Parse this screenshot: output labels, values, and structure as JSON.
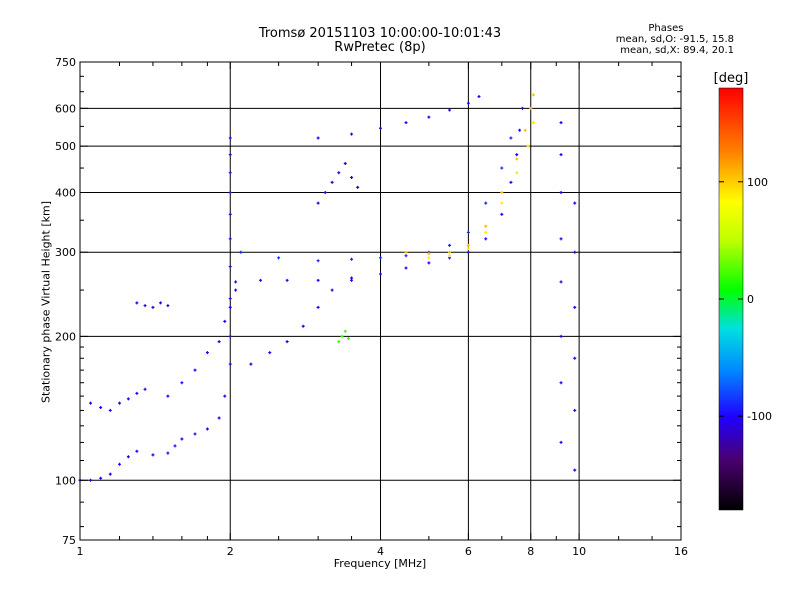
{
  "header": {
    "title_line1": "Tromsø 20151103 10:00:00-10:01:43",
    "title_line2": "RwPretec (8p)"
  },
  "phases": {
    "title": "Phases",
    "line_o": "mean, sd,O: -91.5, 15.8",
    "line_x": "mean, sd,X: 89.4, 20.1"
  },
  "chart_data": {
    "type": "scatter",
    "title": "Tromsø 20151103 10:00:00-10:01:43",
    "subtitle": "RwPretec (8p)",
    "xlabel": "Frequency [MHz]",
    "ylabel": "Stationary phase Virtual Height [km]",
    "x_scale": "log",
    "y_scale": "log",
    "xlim": [
      1,
      16
    ],
    "ylim": [
      75,
      750
    ],
    "x_ticks": [
      1,
      2,
      4,
      6,
      8,
      10,
      16
    ],
    "x_tick_labels": [
      "1",
      "2",
      "4",
      "6",
      "8",
      "10",
      "16"
    ],
    "x_minor_ticks": [
      1.2,
      1.4,
      1.6,
      1.8,
      2.5,
      3,
      3.5,
      5,
      7,
      9,
      12,
      14
    ],
    "y_ticks": [
      75,
      100,
      200,
      300,
      400,
      500,
      600,
      750
    ],
    "y_tick_labels": [
      "75",
      "100",
      "200",
      "300",
      "400",
      "500",
      "600",
      "750"
    ],
    "y_minor_ticks": [
      80,
      90,
      110,
      120,
      130,
      140,
      150,
      160,
      170,
      180,
      190,
      250,
      350,
      450,
      550,
      650,
      700
    ],
    "grid": true,
    "colorbar": {
      "label": "[deg]",
      "range": [
        -180,
        180
      ],
      "ticks": [
        100,
        0,
        -100
      ],
      "tick_labels": [
        "100",
        "0",
        "-100"
      ]
    },
    "traces": [
      {
        "name": "",
        "phase": -100,
        "points": [
          [
            1.0,
            100
          ],
          [
            1.05,
            100
          ],
          [
            1.1,
            101
          ],
          [
            1.15,
            103
          ],
          [
            1.2,
            108
          ],
          [
            1.25,
            112
          ],
          [
            1.3,
            115
          ],
          [
            1.4,
            113
          ],
          [
            1.5,
            114
          ],
          [
            1.55,
            118
          ],
          [
            1.6,
            122
          ],
          [
            1.7,
            125
          ],
          [
            1.8,
            128
          ],
          [
            1.9,
            135
          ],
          [
            1.95,
            150
          ]
        ]
      },
      {
        "name": "",
        "phase": -100,
        "points": [
          [
            1.05,
            145
          ],
          [
            1.1,
            142
          ],
          [
            1.15,
            140
          ],
          [
            1.2,
            145
          ],
          [
            1.25,
            148
          ],
          [
            1.3,
            152
          ],
          [
            1.35,
            155
          ]
        ]
      },
      {
        "name": "",
        "phase": -100,
        "points": [
          [
            1.3,
            235
          ],
          [
            1.35,
            232
          ],
          [
            1.4,
            230
          ],
          [
            1.45,
            235
          ],
          [
            1.5,
            232
          ]
        ]
      },
      {
        "name": "",
        "phase": -100,
        "points": [
          [
            1.5,
            150
          ],
          [
            1.6,
            160
          ],
          [
            1.7,
            170
          ],
          [
            1.8,
            185
          ],
          [
            1.9,
            195
          ],
          [
            1.95,
            215
          ],
          [
            2.0,
            230
          ],
          [
            2.05,
            250
          ]
        ]
      },
      {
        "name": "",
        "phase": -95,
        "points": [
          [
            2.0,
            175
          ],
          [
            2.0,
            200
          ],
          [
            2.0,
            240
          ],
          [
            2.0,
            280
          ],
          [
            2.0,
            320
          ],
          [
            2.0,
            360
          ],
          [
            2.0,
            400
          ],
          [
            2.0,
            440
          ],
          [
            2.0,
            480
          ],
          [
            2.0,
            520
          ]
        ]
      },
      {
        "name": "",
        "phase": -100,
        "points": [
          [
            2.05,
            260
          ],
          [
            2.3,
            262
          ],
          [
            2.6,
            262
          ],
          [
            3.0,
            262
          ],
          [
            3.5,
            265
          ],
          [
            4.0,
            270
          ],
          [
            4.5,
            278
          ],
          [
            5.0,
            285
          ],
          [
            5.5,
            292
          ],
          [
            6.0,
            300
          ],
          [
            6.5,
            320
          ],
          [
            7.0,
            360
          ],
          [
            7.3,
            420
          ],
          [
            7.5,
            480
          ],
          [
            7.6,
            540
          ],
          [
            7.7,
            600
          ]
        ]
      },
      {
        "name": "",
        "phase": -90,
        "points": [
          [
            2.1,
            300
          ],
          [
            2.5,
            292
          ],
          [
            3.0,
            288
          ],
          [
            3.5,
            290
          ],
          [
            4.0,
            292
          ],
          [
            4.5,
            295
          ],
          [
            5.0,
            300
          ],
          [
            5.5,
            310
          ],
          [
            6.0,
            330
          ],
          [
            6.5,
            380
          ],
          [
            7.0,
            450
          ],
          [
            7.3,
            520
          ]
        ]
      },
      {
        "name": "",
        "phase": -105,
        "points": [
          [
            2.2,
            175
          ],
          [
            2.4,
            185
          ],
          [
            2.6,
            195
          ],
          [
            2.8,
            210
          ],
          [
            3.0,
            230
          ],
          [
            3.2,
            250
          ],
          [
            3.5,
            262
          ]
        ]
      },
      {
        "name": "",
        "phase": 105,
        "points": [
          [
            4.5,
            300
          ],
          [
            5.0,
            298
          ],
          [
            5.5,
            300
          ],
          [
            6.0,
            310
          ],
          [
            6.5,
            340
          ],
          [
            7.0,
            400
          ],
          [
            7.5,
            470
          ],
          [
            7.8,
            540
          ],
          [
            8.0,
            600
          ],
          [
            8.1,
            640
          ]
        ]
      },
      {
        "name": "",
        "phase": 90,
        "points": [
          [
            5.0,
            292
          ],
          [
            5.5,
            295
          ],
          [
            6.0,
            305
          ],
          [
            6.5,
            330
          ],
          [
            7.0,
            380
          ],
          [
            7.5,
            440
          ],
          [
            7.9,
            500
          ],
          [
            8.1,
            560
          ]
        ]
      },
      {
        "name": "",
        "phase": -100,
        "points": [
          [
            3.0,
            520
          ],
          [
            3.5,
            530
          ],
          [
            4.0,
            545
          ],
          [
            4.5,
            560
          ],
          [
            5.0,
            575
          ],
          [
            5.5,
            595
          ],
          [
            6.0,
            615
          ],
          [
            6.3,
            635
          ]
        ]
      },
      {
        "name": "",
        "phase": -110,
        "points": [
          [
            3.0,
            380
          ],
          [
            3.1,
            400
          ],
          [
            3.2,
            420
          ],
          [
            3.3,
            440
          ],
          [
            3.4,
            460
          ],
          [
            3.5,
            430
          ],
          [
            3.6,
            410
          ]
        ]
      },
      {
        "name": "",
        "phase": 20,
        "points": [
          [
            3.3,
            195
          ],
          [
            3.35,
            200
          ],
          [
            3.4,
            205
          ],
          [
            3.45,
            198
          ]
        ]
      },
      {
        "name": "",
        "phase": -110,
        "points": [
          [
            9.2,
            120
          ],
          [
            9.2,
            160
          ],
          [
            9.2,
            200
          ],
          [
            9.2,
            260
          ],
          [
            9.2,
            320
          ],
          [
            9.2,
            400
          ],
          [
            9.2,
            480
          ],
          [
            9.2,
            560
          ]
        ]
      },
      {
        "name": "",
        "phase": -105,
        "points": [
          [
            9.8,
            105
          ],
          [
            9.8,
            140
          ],
          [
            9.8,
            180
          ],
          [
            9.8,
            230
          ],
          [
            9.8,
            300
          ],
          [
            9.8,
            380
          ]
        ]
      }
    ]
  }
}
